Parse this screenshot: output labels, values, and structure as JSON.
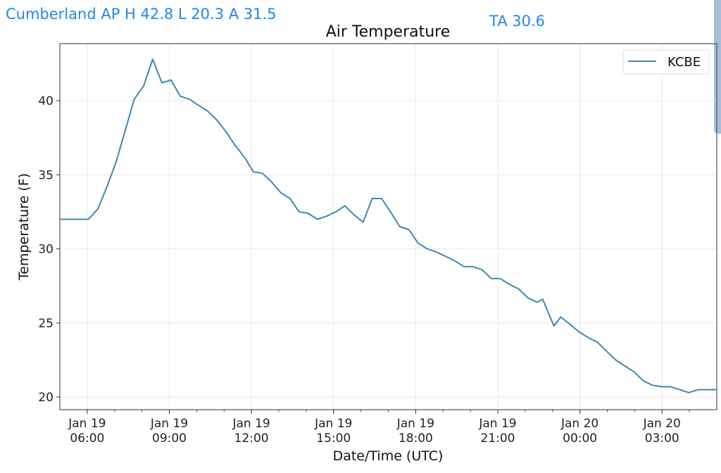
{
  "header": {
    "station_summary": "Cumberland AP H 42.8 L 20.3 A 31.5",
    "ta": "TA 30.6"
  },
  "colors": {
    "line": "#3f88b0",
    "header_text": "#1f88e5"
  },
  "chart_data": {
    "type": "line",
    "title": "Air Temperature",
    "xlabel": "Date/Time (UTC)",
    "ylabel": "Temperature (F)",
    "x_units": "hours since Jan 19 05:00 UTC",
    "xlim": [
      0,
      24
    ],
    "ylim": [
      19.15,
      43.85
    ],
    "grid": true,
    "legend_placement": "top-right",
    "x_ticks": [
      {
        "value": 1,
        "line1": "Jan 19",
        "line2": "06:00"
      },
      {
        "value": 4,
        "line1": "Jan 19",
        "line2": "09:00"
      },
      {
        "value": 7,
        "line1": "Jan 19",
        "line2": "12:00"
      },
      {
        "value": 10,
        "line1": "Jan 19",
        "line2": "15:00"
      },
      {
        "value": 13,
        "line1": "Jan 19",
        "line2": "18:00"
      },
      {
        "value": 16,
        "line1": "Jan 19",
        "line2": "21:00"
      },
      {
        "value": 19,
        "line1": "Jan 20",
        "line2": "00:00"
      },
      {
        "value": 22,
        "line1": "Jan 20",
        "line2": "03:00"
      }
    ],
    "y_ticks": [
      {
        "value": 20,
        "label": "20"
      },
      {
        "value": 25,
        "label": "25"
      },
      {
        "value": 30,
        "label": "30"
      },
      {
        "value": 35,
        "label": "35"
      },
      {
        "value": 40,
        "label": "40"
      }
    ],
    "series": [
      {
        "name": "KCBE",
        "x": [
          0,
          1.05,
          1.39,
          1.72,
          2.06,
          2.39,
          2.72,
          3.06,
          3.39,
          3.73,
          4.06,
          4.4,
          4.73,
          5.06,
          5.4,
          5.73,
          6.07,
          6.4,
          6.74,
          7.07,
          7.4,
          7.74,
          8.07,
          8.41,
          8.74,
          9.07,
          9.41,
          9.74,
          10.08,
          10.41,
          10.75,
          11.08,
          11.41,
          11.75,
          12.08,
          12.42,
          12.75,
          13.08,
          13.42,
          13.75,
          14.09,
          14.42,
          14.76,
          15.09,
          15.42,
          15.76,
          16.09,
          16.43,
          16.76,
          17.1,
          17.43,
          17.64,
          18.05,
          18.3,
          18.64,
          18.97,
          19.31,
          19.64,
          19.97,
          20.31,
          20.64,
          20.98,
          21.31,
          21.65,
          21.98,
          22.31,
          22.65,
          22.98,
          23.32,
          23.98
        ],
        "y": [
          32.0,
          32.0,
          32.7,
          34.2,
          35.9,
          38.0,
          40.1,
          41.0,
          42.8,
          41.2,
          41.4,
          40.3,
          40.1,
          39.7,
          39.3,
          38.7,
          37.9,
          37.0,
          36.2,
          35.2,
          35.1,
          34.5,
          33.8,
          33.4,
          32.5,
          32.4,
          32.0,
          32.2,
          32.5,
          32.9,
          32.3,
          31.8,
          33.4,
          33.4,
          32.5,
          31.5,
          31.3,
          30.4,
          30.0,
          29.8,
          29.5,
          29.2,
          28.8,
          28.8,
          28.6,
          28.0,
          28.0,
          27.6,
          27.3,
          26.7,
          26.4,
          26.6,
          24.8,
          25.4,
          24.9,
          24.4,
          24.0,
          23.7,
          23.1,
          22.5,
          22.1,
          21.7,
          21.1,
          20.8,
          20.7,
          20.7,
          20.5,
          20.3,
          20.5,
          20.5
        ]
      }
    ]
  }
}
